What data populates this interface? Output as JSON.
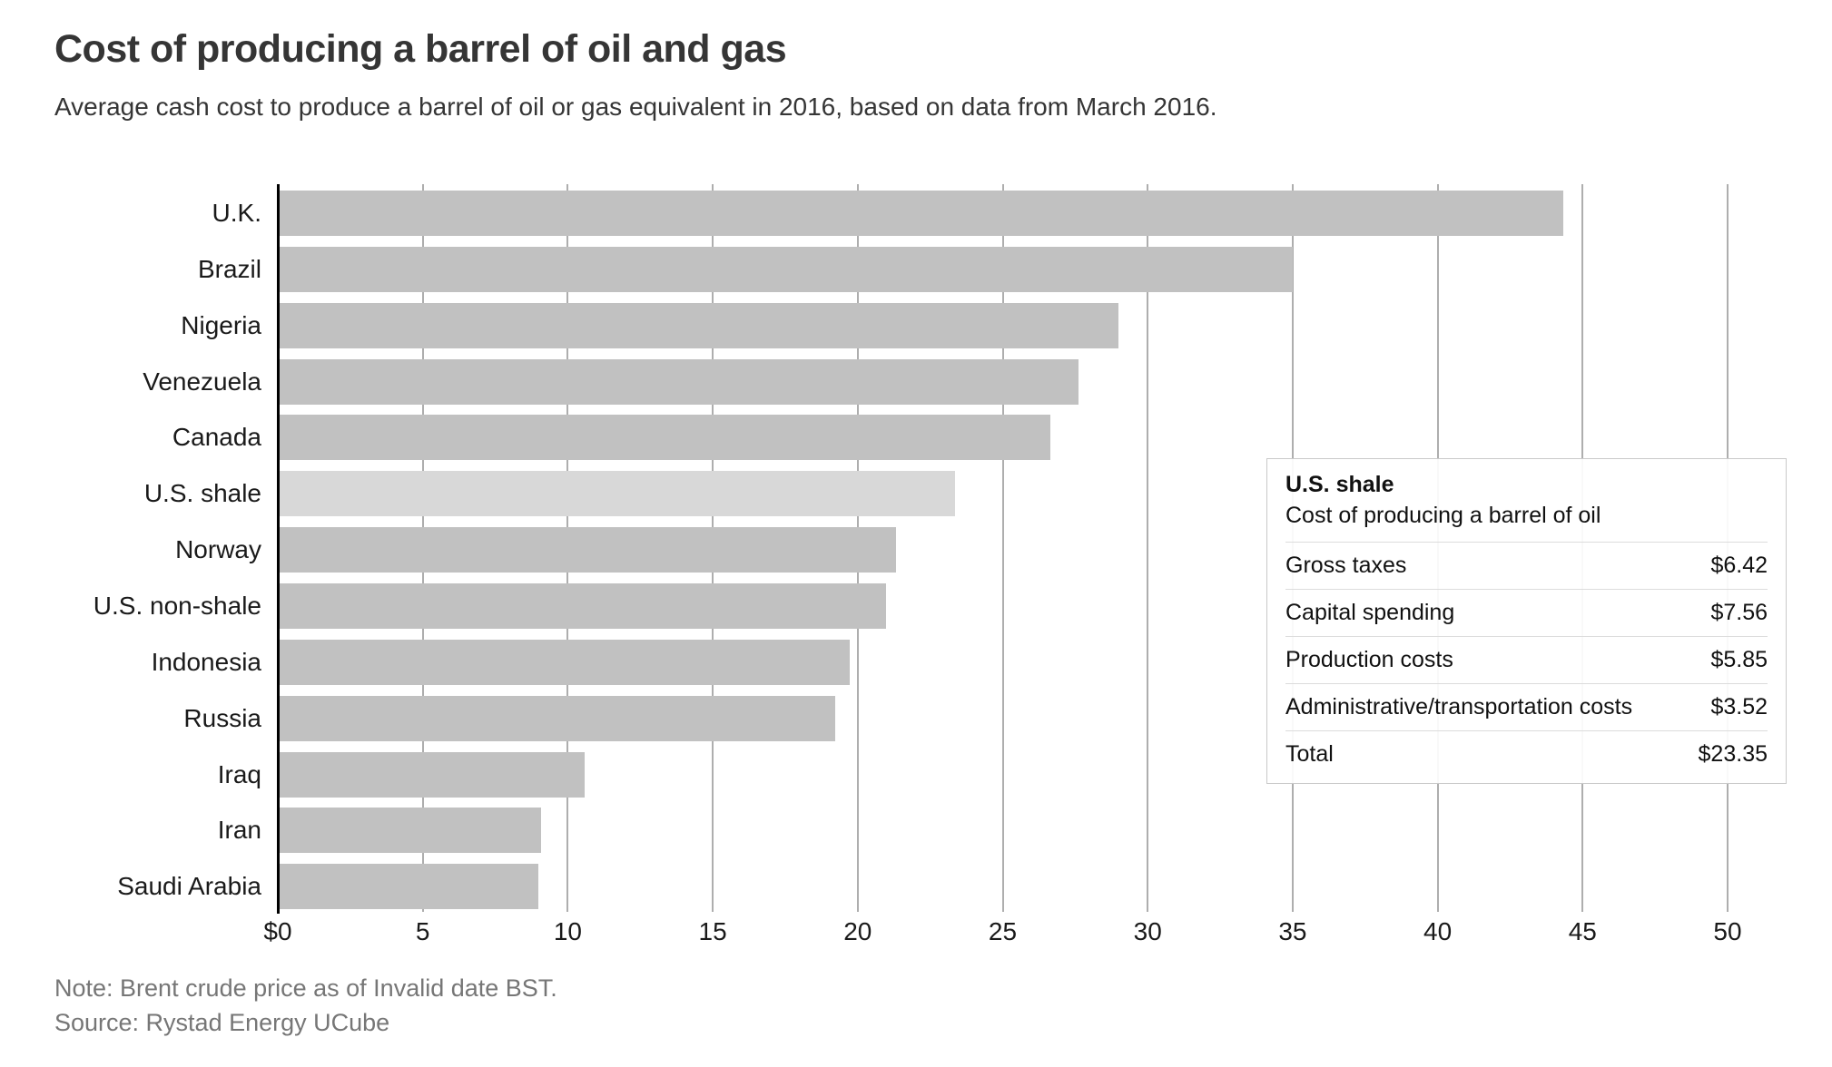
{
  "header": {
    "title": "Cost of producing a barrel of oil and gas",
    "subtitle": "Average cash cost to produce a barrel of oil or gas equivalent in 2016, based on data from March 2016."
  },
  "chart_data": {
    "type": "bar",
    "orientation": "horizontal",
    "title": "Cost of producing a barrel of oil and gas",
    "subtitle": "Average cash cost to produce a barrel of oil or gas equivalent in 2016, based on data from March 2016.",
    "categories": [
      "U.K.",
      "Brazil",
      "Nigeria",
      "Venezuela",
      "Canada",
      "U.S. shale",
      "Norway",
      "U.S. non-shale",
      "Indonesia",
      "Russia",
      "Iraq",
      "Iran",
      "Saudi Arabia"
    ],
    "values": [
      44.33,
      34.99,
      28.99,
      27.62,
      26.64,
      23.35,
      21.31,
      20.99,
      19.71,
      19.21,
      10.57,
      9.08,
      8.98
    ],
    "highlighted_category": "U.S. shale",
    "x_ticks": [
      {
        "label": "$0",
        "value": 0
      },
      {
        "label": "5",
        "value": 5
      },
      {
        "label": "10",
        "value": 10
      },
      {
        "label": "15",
        "value": 15
      },
      {
        "label": "20",
        "value": 20
      },
      {
        "label": "25",
        "value": 25
      },
      {
        "label": "30",
        "value": 30
      },
      {
        "label": "35",
        "value": 35
      },
      {
        "label": "40",
        "value": 40
      },
      {
        "label": "45",
        "value": 45
      },
      {
        "label": "50",
        "value": 50
      }
    ],
    "xlim": [
      0,
      53.6
    ],
    "grid": "vertical",
    "legend": "none",
    "tooltip": {
      "title": "U.S. shale",
      "subtitle": "Cost of producing a barrel of oil",
      "rows": [
        {
          "label": "Gross taxes",
          "value": "$6.42"
        },
        {
          "label": "Capital spending",
          "value": "$7.56"
        },
        {
          "label": "Production costs",
          "value": "$5.85"
        },
        {
          "label": "Administrative/transportation costs",
          "value": "$3.52"
        },
        {
          "label": "Total",
          "value": "$23.35"
        }
      ]
    }
  },
  "footer": {
    "note": "Note: Brent crude price as of Invalid date BST.",
    "source": "Source: Rystad Energy UCube"
  },
  "colors": {
    "bar": "#c1c1c1",
    "bar_highlight": "#d8d8d8",
    "gridline": "#aeaeae",
    "axis": "#000000",
    "label_text": "#1a1a1a",
    "title_text": "#353535",
    "muted_text": "#767676"
  }
}
